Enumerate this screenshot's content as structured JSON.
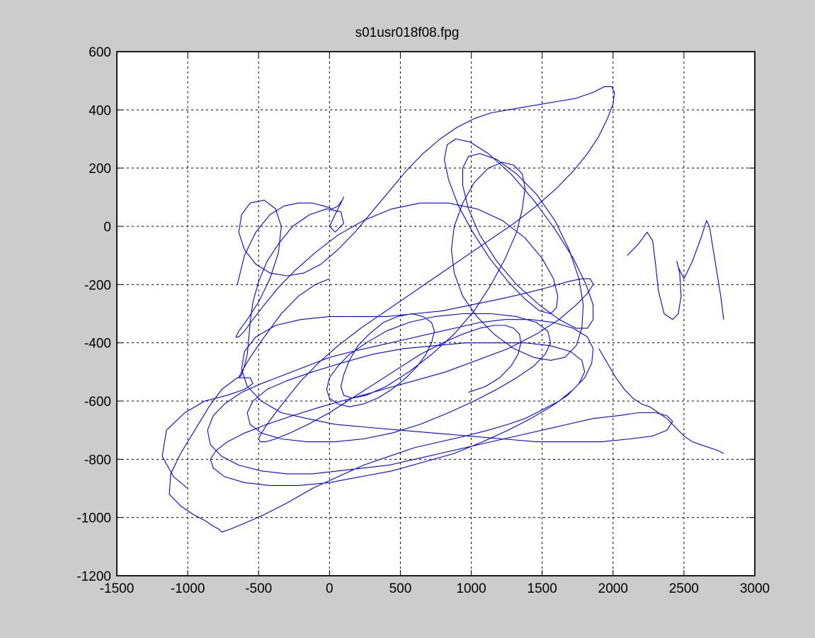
{
  "chart_data": {
    "type": "line",
    "title": "s01usr018f08.fpg",
    "xlabel": "",
    "ylabel": "",
    "xlim": [
      -1500,
      3000
    ],
    "ylim": [
      -1200,
      600
    ],
    "x_ticks": [
      -1500,
      -1000,
      -500,
      0,
      500,
      1000,
      1500,
      2000,
      2500,
      3000
    ],
    "x_tick_labels": [
      "-1500",
      "-1000",
      "-500",
      "0",
      "500",
      "1000",
      "1500",
      "2000",
      "2500",
      "3000"
    ],
    "y_ticks": [
      -1200,
      -1000,
      -800,
      -600,
      -400,
      -200,
      0,
      200,
      400,
      600
    ],
    "y_tick_labels": [
      "-1200",
      "-1000",
      "-800",
      "-600",
      "-400",
      "-200",
      "0",
      "200",
      "400",
      "600"
    ],
    "grid": true,
    "series": [
      {
        "color": "#0000ff",
        "x": [
          -1000,
          -1100,
          -1180,
          -1150,
          -1020,
          -880,
          -720,
          -600,
          -540,
          -560,
          -650,
          -760,
          -850,
          -950,
          -1050,
          -1120,
          -1130,
          -1050,
          -960,
          -880,
          -820,
          -780,
          -760,
          -700,
          -600,
          -460,
          -300,
          -120,
          60,
          240,
          420,
          600,
          780,
          960,
          1120,
          1260,
          1380,
          1500,
          1620,
          1720,
          1800,
          1850,
          1860,
          1820,
          1720,
          1580,
          1420,
          1240,
          1060,
          880,
          700,
          520,
          340,
          160,
          0,
          -160,
          -320,
          -480,
          -620,
          -740,
          -820,
          -860,
          -840,
          -760,
          -640,
          -480,
          -300,
          -120,
          60,
          240,
          420,
          600,
          780,
          960,
          1140,
          1320,
          1500,
          1680,
          1860,
          2040,
          2180,
          2300,
          2380,
          2420,
          2380,
          2280,
          2120,
          1920,
          1700,
          1460,
          1220,
          980,
          740,
          500,
          260,
          40,
          -160,
          -340,
          -480,
          -580,
          -620,
          -600,
          -520,
          -380,
          -200,
          0,
          200,
          400,
          600,
          800,
          1000,
          1200,
          1380,
          1540,
          1680,
          1780,
          1840,
          1860,
          1820,
          1740,
          1620,
          1460,
          1260,
          1040,
          820,
          600,
          380,
          160,
          -60,
          -260,
          -440,
          -600,
          -720,
          -800,
          -840,
          -820,
          -740,
          -600,
          -420,
          -220,
          0,
          220,
          440,
          660,
          880,
          1080,
          1260,
          1420,
          1560,
          1680,
          1760,
          1800,
          1780,
          1700,
          1560,
          1380,
          1180,
          960,
          740,
          520,
          300,
          80,
          -120,
          -300,
          -440,
          -540,
          -580,
          -560,
          -480,
          -340,
          -160,
          40,
          240,
          440,
          640,
          840,
          1020,
          1180,
          1320,
          1440,
          1520,
          1560,
          1540,
          1460,
          1320,
          1140,
          940,
          740,
          560,
          400,
          260,
          140,
          60,
          0,
          -20,
          0,
          60,
          140,
          240,
          340,
          440,
          540,
          620,
          680,
          720,
          740,
          720,
          660,
          580,
          480,
          380,
          280,
          200,
          140,
          100,
          80,
          100,
          160,
          260,
          400,
          560,
          720,
          880,
          1020,
          1140,
          1240,
          1320,
          1360,
          1380,
          1360,
          1300,
          1220,
          1120,
          1020,
          940,
          880,
          860,
          880,
          940,
          1040,
          1160,
          1300,
          1440,
          1560,
          1660,
          1740,
          1780,
          1790,
          1760,
          1690,
          1590,
          1460,
          1320,
          1180,
          1060,
          980,
          940,
          940,
          980,
          1060,
          1180,
          1320,
          1480,
          1620,
          1740,
          1820,
          1860,
          1860,
          1810,
          1720,
          1590,
          1440,
          1280,
          1120,
          990,
          890,
          830,
          810,
          840,
          910,
          1010,
          1130,
          1260,
          1380,
          1480,
          1560,
          1600,
          1610,
          1580,
          1500,
          1380,
          1220,
          1040,
          840,
          640,
          440,
          240,
          60,
          -100,
          -240,
          -360,
          -460,
          -540,
          -600,
          -640,
          -660,
          -640,
          -580,
          -500,
          -420,
          -360,
          -340,
          -380,
          -460,
          -560,
          -620,
          -640,
          -600,
          -520,
          -420,
          -300,
          -180,
          -60,
          60,
          180,
          300,
          420,
          540,
          660,
          780,
          900,
          1020,
          1140,
          1260,
          1380,
          1500,
          1620,
          1740,
          1860,
          1940,
          1990,
          2010,
          2000,
          1960,
          1900,
          1820,
          1720,
          1600,
          1460,
          1300,
          1120,
          940,
          760,
          580,
          400,
          220,
          60,
          -80,
          -200,
          -300,
          -380,
          -440,
          -480,
          -500,
          -490,
          -450,
          -380,
          -280,
          -150,
          0,
          160,
          320,
          480,
          640,
          800,
          940,
          1060,
          1160,
          1240,
          1300,
          1340,
          1350,
          1330,
          1280,
          1200,
          1100,
          980
        ],
        "y": [
          -900,
          -860,
          -790,
          -700,
          -640,
          -600,
          -580,
          -560,
          -540,
          -520,
          -520,
          -560,
          -620,
          -700,
          -780,
          -850,
          -920,
          -960,
          -990,
          -1010,
          -1030,
          -1040,
          -1050,
          -1040,
          -1020,
          -990,
          -950,
          -900,
          -860,
          -820,
          -790,
          -760,
          -740,
          -720,
          -700,
          -680,
          -660,
          -630,
          -600,
          -560,
          -520,
          -470,
          -420,
          -380,
          -350,
          -330,
          -320,
          -320,
          -330,
          -350,
          -370,
          -390,
          -410,
          -430,
          -450,
          -480,
          -510,
          -540,
          -570,
          -610,
          -650,
          -700,
          -750,
          -790,
          -820,
          -840,
          -850,
          -850,
          -840,
          -830,
          -820,
          -800,
          -780,
          -760,
          -740,
          -720,
          -700,
          -680,
          -660,
          -650,
          -640,
          -640,
          -650,
          -670,
          -700,
          -720,
          -730,
          -740,
          -740,
          -740,
          -730,
          -720,
          -710,
          -700,
          -690,
          -680,
          -660,
          -640,
          -600,
          -550,
          -490,
          -430,
          -380,
          -340,
          -320,
          -310,
          -310,
          -310,
          -300,
          -290,
          -270,
          -250,
          -230,
          -210,
          -190,
          -180,
          -180,
          -200,
          -230,
          -270,
          -320,
          -370,
          -420,
          -460,
          -500,
          -530,
          -560,
          -590,
          -620,
          -650,
          -680,
          -710,
          -740,
          -770,
          -800,
          -830,
          -860,
          -880,
          -890,
          -890,
          -880,
          -860,
          -840,
          -810,
          -780,
          -740,
          -700,
          -660,
          -620,
          -580,
          -540,
          -500,
          -460,
          -430,
          -410,
          -400,
          -400,
          -400,
          -410,
          -420,
          -440,
          -470,
          -500,
          -530,
          -560,
          -600,
          -640,
          -680,
          -710,
          -730,
          -740,
          -740,
          -730,
          -710,
          -680,
          -640,
          -600,
          -560,
          -520,
          -480,
          -440,
          -400,
          -360,
          -330,
          -310,
          -300,
          -300,
          -310,
          -330,
          -360,
          -400,
          -440,
          -480,
          -520,
          -560,
          -590,
          -610,
          -620,
          -610,
          -590,
          -560,
          -520,
          -480,
          -440,
          -400,
          -360,
          -330,
          -310,
          -300,
          -310,
          -330,
          -370,
          -410,
          -460,
          -510,
          -550,
          -580,
          -590,
          -580,
          -550,
          -500,
          -440,
          -370,
          -290,
          -200,
          -110,
          -20,
          60,
          130,
          180,
          210,
          220,
          200,
          150,
          80,
          0,
          -80,
          -160,
          -240,
          -310,
          -370,
          -420,
          -450,
          -460,
          -450,
          -410,
          -350,
          -270,
          -180,
          -80,
          20,
          110,
          180,
          230,
          250,
          240,
          200,
          140,
          60,
          -30,
          -120,
          -200,
          -270,
          -320,
          -350,
          -350,
          -320,
          -270,
          -200,
          -110,
          -10,
          90,
          180,
          250,
          290,
          300,
          280,
          230,
          160,
          70,
          -20,
          -110,
          -190,
          -250,
          -290,
          -300,
          -280,
          -240,
          -180,
          -110,
          -40,
          20,
          60,
          80,
          80,
          60,
          20,
          -30,
          -90,
          -150,
          -210,
          -270,
          -320,
          -360,
          -380,
          -380,
          -360,
          -320,
          -260,
          -180,
          -90,
          0,
          60,
          90,
          80,
          40,
          -20,
          -80,
          -130,
          -160,
          -170,
          -160,
          -130,
          -80,
          -20,
          50,
          120,
          190,
          250,
          300,
          340,
          370,
          390,
          400,
          410,
          420,
          430,
          440,
          460,
          480,
          480,
          460,
          420,
          370,
          310,
          250,
          190,
          130,
          70,
          10,
          -50,
          -110,
          -170,
          -230,
          -290,
          -350,
          -410,
          -470,
          -530,
          -590,
          -640,
          -680,
          -710,
          -730,
          -740,
          -740,
          -730,
          -710,
          -680,
          -640,
          -590,
          -540,
          -490,
          -440,
          -400,
          -370,
          -350,
          -340,
          -340,
          -350,
          -370,
          -400,
          -440,
          -480,
          -520,
          -550,
          -570
        ]
      },
      {
        "color": "#0000ff",
        "x": [
          -650,
          -600,
          -520,
          -420,
          -320,
          -220,
          -120,
          -40,
          20,
          60,
          90,
          100,
          80,
          40,
          0,
          40,
          100,
          80,
          -20,
          -140,
          -260,
          -360,
          -440,
          -500,
          -540,
          -560,
          -570,
          -580,
          -600,
          -620,
          -640,
          -620,
          -560,
          -460,
          -340,
          -220,
          -100,
          0
        ],
        "y": [
          -200,
          -100,
          -20,
          40,
          70,
          80,
          80,
          70,
          60,
          70,
          90,
          100,
          80,
          40,
          0,
          -20,
          10,
          50,
          60,
          40,
          0,
          -60,
          -120,
          -190,
          -260,
          -330,
          -390,
          -440,
          -480,
          -510,
          -520,
          -500,
          -450,
          -380,
          -300,
          -240,
          -200,
          -180
        ]
      },
      {
        "color": "#0000ff",
        "x": [
          2100,
          2180,
          2240,
          2280,
          2300,
          2320,
          2360,
          2420,
          2460,
          2480,
          2470,
          2450,
          2460,
          2500,
          2560,
          2620,
          2660,
          2680,
          2720,
          2760,
          2780
        ],
        "y": [
          -100,
          -60,
          -20,
          -50,
          -130,
          -220,
          -300,
          -320,
          -300,
          -240,
          -160,
          -120,
          -140,
          -180,
          -120,
          -40,
          20,
          0,
          -120,
          -240,
          -320
        ]
      },
      {
        "color": "#0000ff",
        "x": [
          1900,
          1960,
          2020,
          2080,
          2140,
          2200,
          2260,
          2320,
          2380,
          2440,
          2500,
          2560,
          2620,
          2680,
          2740,
          2780
        ],
        "y": [
          -420,
          -470,
          -520,
          -560,
          -590,
          -610,
          -620,
          -640,
          -660,
          -690,
          -720,
          -740,
          -750,
          -760,
          -770,
          -780
        ]
      }
    ]
  }
}
